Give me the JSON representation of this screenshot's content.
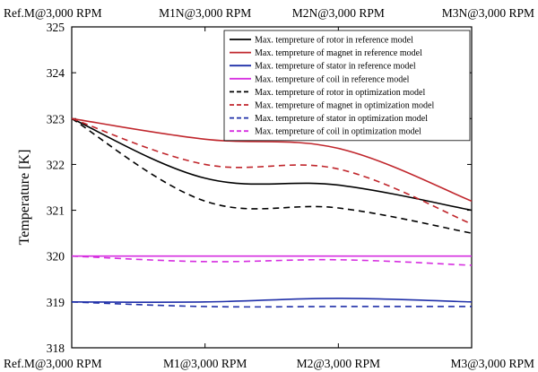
{
  "chart_data": {
    "type": "line",
    "title": "",
    "xlabel": "",
    "ylabel": "Temperature [K]",
    "categories_bottom": [
      "Ref.M@3,000 RPM",
      "M1@3,000 RPM",
      "M2@3,000 RPM",
      "M3@3,000 RPM"
    ],
    "categories_top": [
      "Ref.M@3,000 RPM",
      "M1N@3,000 RPM",
      "M2N@3,000 RPM",
      "M3N@3,000 RPM"
    ],
    "ylim": [
      318,
      325
    ],
    "yticks": [
      318,
      319,
      320,
      321,
      322,
      323,
      324,
      325
    ],
    "grid": false,
    "legend_position": "top-right",
    "series": [
      {
        "name": "Max. tempreture of rotor in reference model",
        "color": "#000000",
        "dash": "solid",
        "values": [
          323.0,
          321.7,
          321.55,
          321.0
        ]
      },
      {
        "name": "Max. tempreture of magnet in reference model",
        "color": "#c0262c",
        "dash": "solid",
        "values": [
          323.0,
          322.55,
          322.35,
          321.2
        ]
      },
      {
        "name": "Max. tempreture of stator in reference model",
        "color": "#1f2fa8",
        "dash": "solid",
        "values": [
          319.0,
          319.0,
          319.08,
          319.0
        ]
      },
      {
        "name": "Max. tempreture of coil in reference model",
        "color": "#d62ee0",
        "dash": "solid",
        "values": [
          320.0,
          320.0,
          320.0,
          320.0
        ]
      },
      {
        "name": "Max. tempreture of rotor in optimization model",
        "color": "#000000",
        "dash": "dashed",
        "values": [
          323.0,
          321.2,
          321.05,
          320.5
        ]
      },
      {
        "name": "Max. tempreture of magnet in optimization model",
        "color": "#c0262c",
        "dash": "dashed",
        "values": [
          323.0,
          322.0,
          321.9,
          320.7
        ]
      },
      {
        "name": "Max. tempreture of stator in optimization model",
        "color": "#1f2fa8",
        "dash": "dashed",
        "values": [
          319.0,
          318.9,
          318.9,
          318.9
        ]
      },
      {
        "name": "Max. tempreture of coil in optimization model",
        "color": "#d62ee0",
        "dash": "dashed",
        "values": [
          320.0,
          319.88,
          319.92,
          319.8
        ]
      }
    ]
  }
}
